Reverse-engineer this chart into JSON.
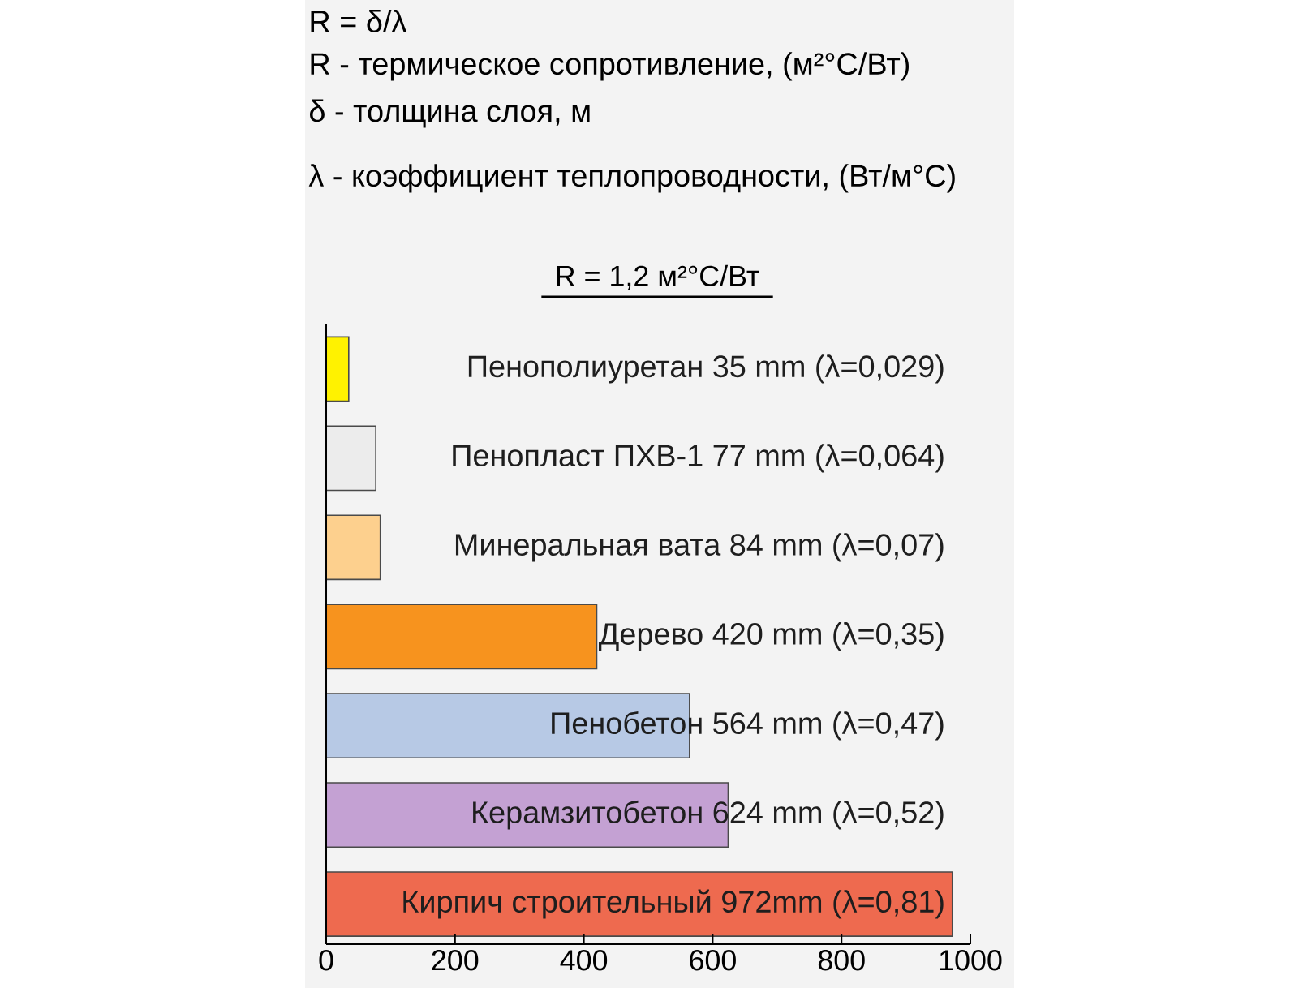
{
  "chart_data": {
    "type": "bar",
    "orientation": "horizontal",
    "title": "R = 1,2 м²°C/Вт",
    "annotations": [
      "R = δ/λ",
      "R - термическое сопротивление, (м²°C/Вт)",
      "δ - толщина слоя, м",
      "λ - коэффициент теплопроводности, (Вт/м°C)"
    ],
    "categories": [
      "Пенополиуретан 35 mm (λ=0,029)",
      "Пенопласт ПХВ-1 77 mm (λ=0,064)",
      "Минеральная вата 84 mm (λ=0,07)",
      "Дерево 420 mm (λ=0,35)",
      "Пенобетон 564 mm (λ=0,47)",
      "Керамзитобетон 624 mm (λ=0,52)",
      "Кирпич строительный 972mm (λ=0,81)"
    ],
    "values": [
      35,
      77,
      84,
      420,
      564,
      624,
      972
    ],
    "colors": [
      "#fff200",
      "#ececec",
      "#fdd08e",
      "#f7931e",
      "#b7c9e5",
      "#c4a1d3",
      "#ee6a4f"
    ],
    "xlim": [
      0,
      1000
    ],
    "xticks": [
      0,
      200,
      400,
      600,
      800,
      1000
    ]
  }
}
